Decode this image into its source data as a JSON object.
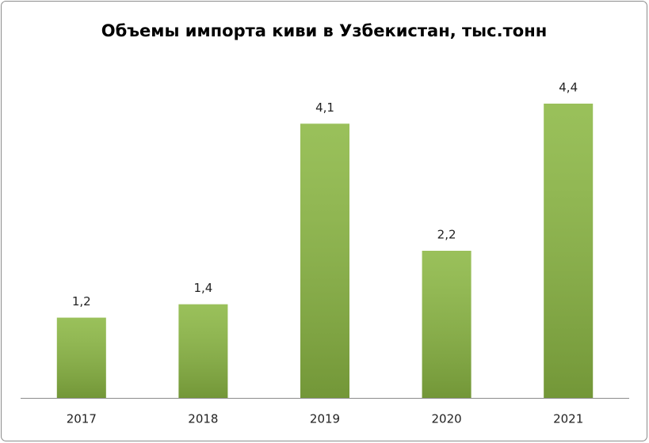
{
  "chart_data": {
    "type": "bar",
    "title": "Объемы импорта киви в Узбекистан, тыс.тонн",
    "categories": [
      "2017",
      "2018",
      "2019",
      "2020",
      "2021"
    ],
    "values": [
      1.2,
      1.4,
      4.1,
      2.2,
      4.4
    ],
    "value_labels": [
      "1,2",
      "1,4",
      "4,1",
      "2,2",
      "4,4"
    ],
    "color": "#8cb844"
  }
}
